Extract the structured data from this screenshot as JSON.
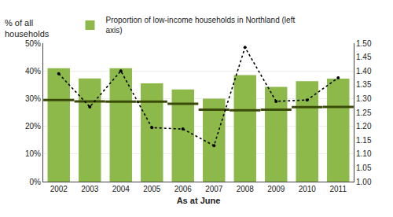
{
  "chart_data": {
    "type": "bar",
    "ylabel": "% of all\nhouseholds",
    "xlabel": "As at June",
    "categories": [
      "2002",
      "2003",
      "2004",
      "2005",
      "2006",
      "2007",
      "2008",
      "2009",
      "2010",
      "2011"
    ],
    "series": [
      {
        "name": "Proportion of low-income households in Northland (left\naxis)",
        "type": "bar",
        "color": "#8db84a",
        "values": [
          0.41,
          0.373,
          0.41,
          0.355,
          0.333,
          0.3,
          0.385,
          0.342,
          0.363,
          0.372
        ]
      },
      {
        "type": "scatter",
        "marker": "line",
        "color": "#3a4a08",
        "values": [
          0.295,
          0.29,
          0.289,
          0.289,
          0.281,
          0.26,
          0.258,
          0.26,
          0.269,
          0.27
        ]
      },
      {
        "type": "line",
        "axis": "y2",
        "color": "#000000",
        "line_style": "dotted",
        "marker": "circle",
        "values": [
          1.39,
          1.27,
          1.4,
          1.195,
          1.19,
          1.13,
          1.485,
          1.29,
          1.295,
          1.375
        ]
      }
    ],
    "ylim": [
      0,
      0.5
    ],
    "yticks": [
      {
        "value": 0.0,
        "label": "0%"
      },
      {
        "value": 0.1,
        "label": "10%"
      },
      {
        "value": 0.2,
        "label": "20%"
      },
      {
        "value": 0.3,
        "label": "30%"
      },
      {
        "value": 0.4,
        "label": "40%"
      },
      {
        "value": 0.5,
        "label": "50%"
      }
    ],
    "y2lim": [
      1.0,
      1.5
    ],
    "y2ticks": [
      {
        "value": 1.0,
        "label": "1.00"
      },
      1.05,
      {
        "value": 1.1,
        "label": "1.10"
      },
      1.15,
      {
        "value": 1.2,
        "label": "1.20"
      },
      1.25,
      {
        "value": 1.3,
        "label": "1.30"
      },
      1.35,
      {
        "value": 1.4,
        "label": "1.40"
      },
      1.45,
      {
        "value": 1.5,
        "label": "1.50"
      }
    ],
    "grid": true,
    "legend": "upper left"
  }
}
